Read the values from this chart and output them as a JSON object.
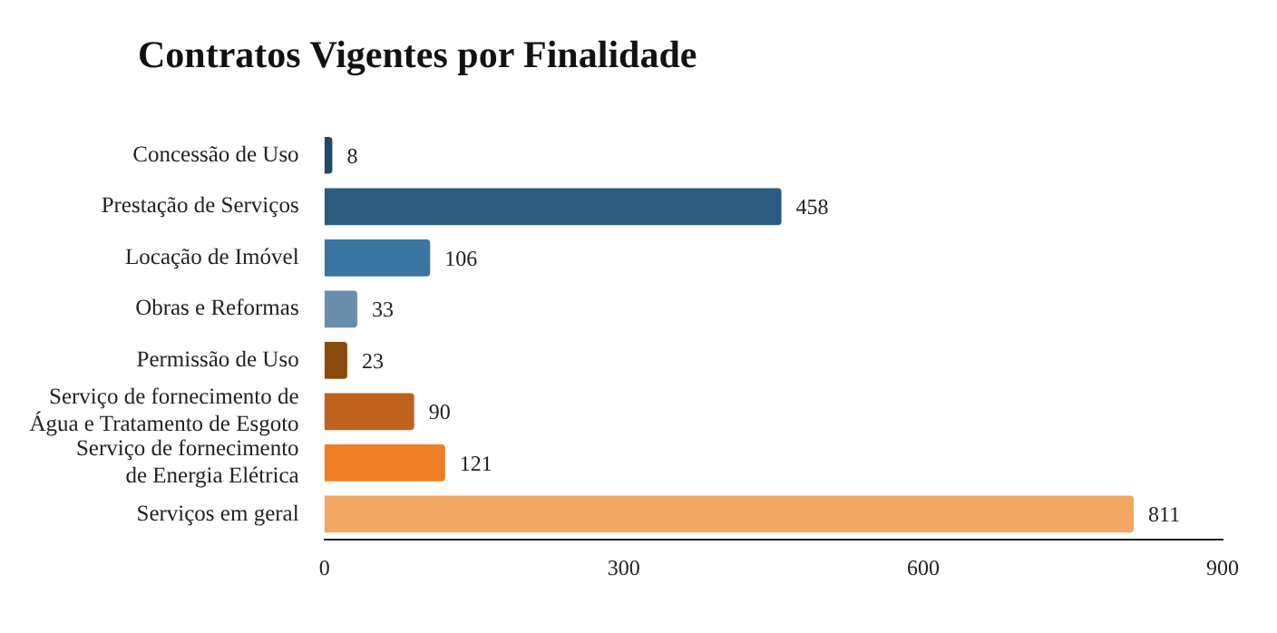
{
  "chart_data": {
    "type": "bar",
    "orientation": "horizontal",
    "title": "Contratos Vigentes por Finalidade",
    "categories": [
      "Concessão de Uso",
      "Prestação de Serviços",
      "Locação de Imóvel",
      "Obras e Reformas",
      "Permissão de Uso",
      "Serviço de fornecimento de\nÁgua e Tratamento de Esgoto",
      "Serviço de fornecimento\nde Energia Elétrica",
      "Serviços em geral"
    ],
    "values": [
      8,
      458,
      106,
      33,
      23,
      90,
      121,
      811
    ],
    "colors": [
      "#1e4a6a",
      "#2b5c7f",
      "#3a74a0",
      "#6a8dac",
      "#8b4b0e",
      "#bf621e",
      "#ef7f25",
      "#f4a663"
    ],
    "xlim": [
      0,
      900
    ],
    "xticks": [
      0,
      300,
      600,
      900
    ],
    "grid": false,
    "legend": false,
    "data_labels": true
  }
}
